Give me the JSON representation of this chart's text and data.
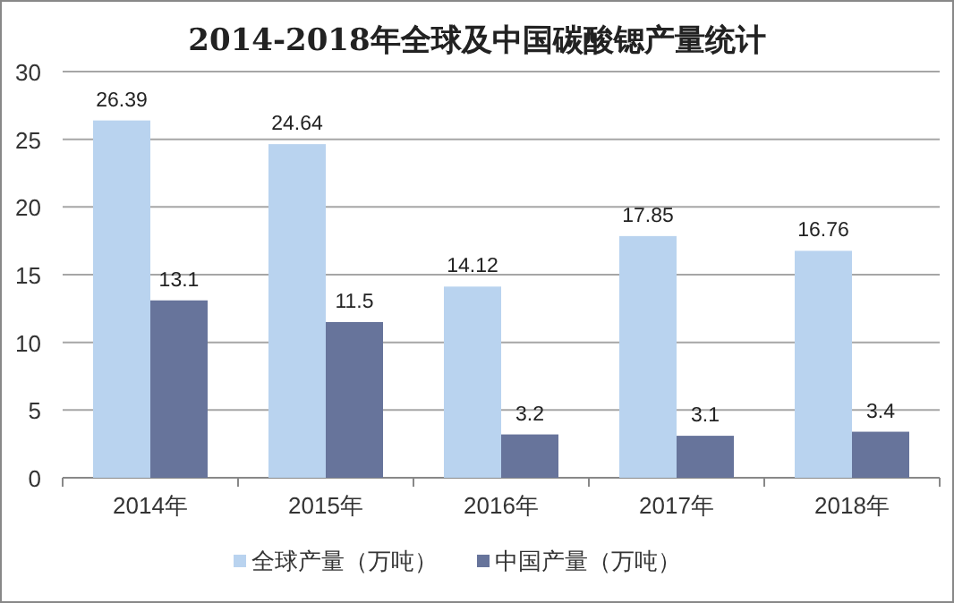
{
  "chart_data": {
    "type": "bar",
    "title": "2014-2018年全球及中国碳酸锶产量统计",
    "categories": [
      "2014年",
      "2015年",
      "2016年",
      "2017年",
      "2018年"
    ],
    "series": [
      {
        "name": "全球产量（万吨）",
        "color": "#b9d3ef",
        "values": [
          26.39,
          24.64,
          14.12,
          17.85,
          16.76
        ]
      },
      {
        "name": "中国产量（万吨）",
        "color": "#67749b",
        "values": [
          13.1,
          11.5,
          3.2,
          3.1,
          3.4
        ]
      }
    ],
    "ylim": [
      0,
      30
    ],
    "yticks": [
      0,
      5,
      10,
      15,
      20,
      25,
      30
    ],
    "grid": "y",
    "data_labels": true,
    "legend": "bottom"
  }
}
